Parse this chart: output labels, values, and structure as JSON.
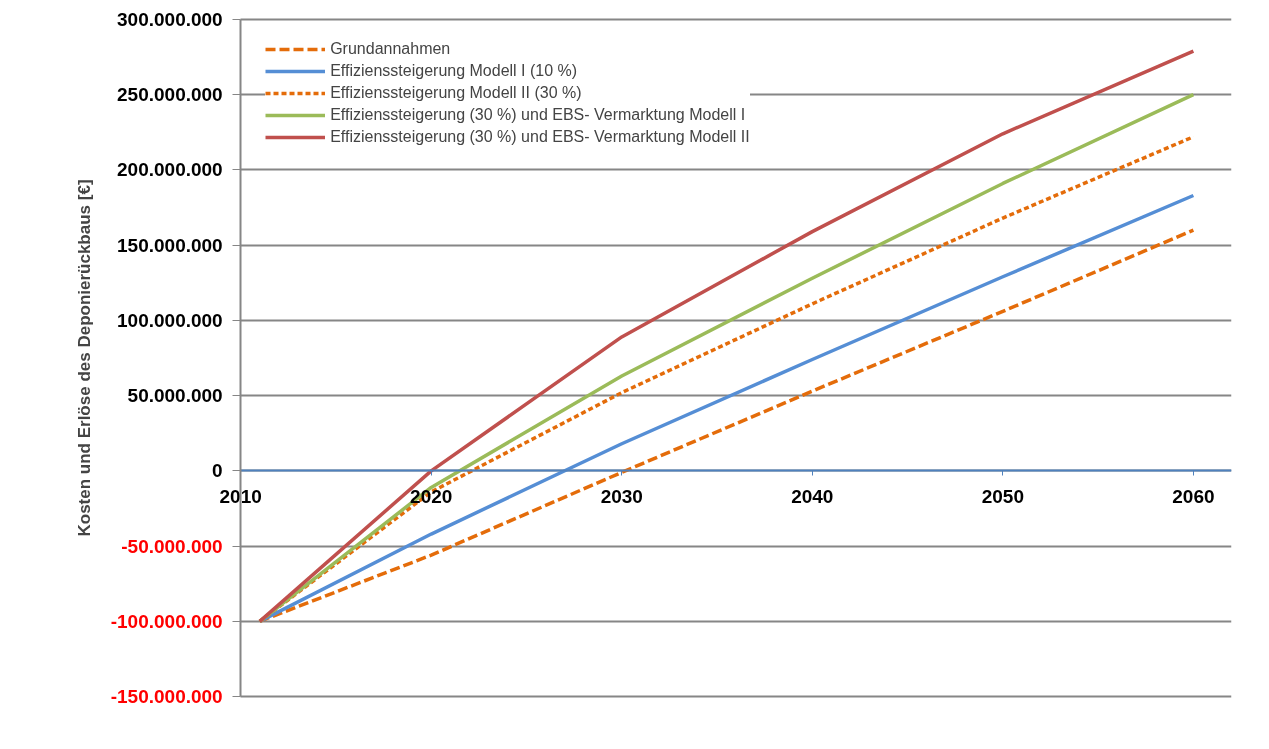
{
  "chart_data": {
    "type": "line",
    "ylabel": "Kosten und Erlöse des Deponierückbaus [€]",
    "x": [
      2011,
      2020,
      2030,
      2040,
      2050,
      2060
    ],
    "xlim": [
      2010,
      2062
    ],
    "xticks": [
      2010,
      2020,
      2030,
      2040,
      2050,
      2060
    ],
    "ylim": [
      -150000000,
      300000000
    ],
    "yticks": [
      {
        "value": -150000000,
        "label": "-150.000.000"
      },
      {
        "value": -100000000,
        "label": "-100.000.000"
      },
      {
        "value": -50000000,
        "label": "-50.000.000"
      },
      0,
      {
        "value": 50000000,
        "label": "50.000.000"
      },
      {
        "value": 100000000,
        "label": "100.000.000"
      },
      {
        "value": 150000000,
        "label": "150.000.000"
      },
      {
        "value": 200000000,
        "label": "200.000.000"
      },
      {
        "value": 250000000,
        "label": "250.000.000"
      },
      {
        "value": 300000000,
        "label": "300.000.000"
      }
    ],
    "grid": "y",
    "legend": "top left",
    "marker": "none",
    "series": [
      {
        "name": "Grundannahmen",
        "color": "#e46c0a",
        "line_style": "dashed",
        "values": [
          -100000000,
          -56000000,
          -1000000,
          53000000,
          106000000,
          160000000
        ]
      },
      {
        "name": "Effizienssteigerung Modell I (10 %)",
        "color": "#558ed5",
        "line_style": "solid",
        "values": [
          -100000000,
          -42000000,
          18000000,
          74000000,
          129000000,
          183000000
        ]
      },
      {
        "name": "Effizienssteigerung Modell II (30 %)",
        "color": "#e46c0a",
        "line_style": "dotted",
        "values": [
          -100000000,
          -14000000,
          52000000,
          111000000,
          168000000,
          222000000
        ]
      },
      {
        "name": "Effizienssteigerung (30 %) und EBS- Vermarktung Modell I",
        "color": "#9bbb59",
        "line_style": "solid",
        "values": [
          -100000000,
          -11000000,
          63000000,
          128000000,
          191000000,
          250000000
        ]
      },
      {
        "name": "Effizienssteigerung (30 %) und EBS- Vermarktung Modell II",
        "color": "#c0504d",
        "line_style": "solid",
        "values": [
          -100000000,
          0,
          89000000,
          159000000,
          224000000,
          279000000
        ]
      }
    ]
  }
}
